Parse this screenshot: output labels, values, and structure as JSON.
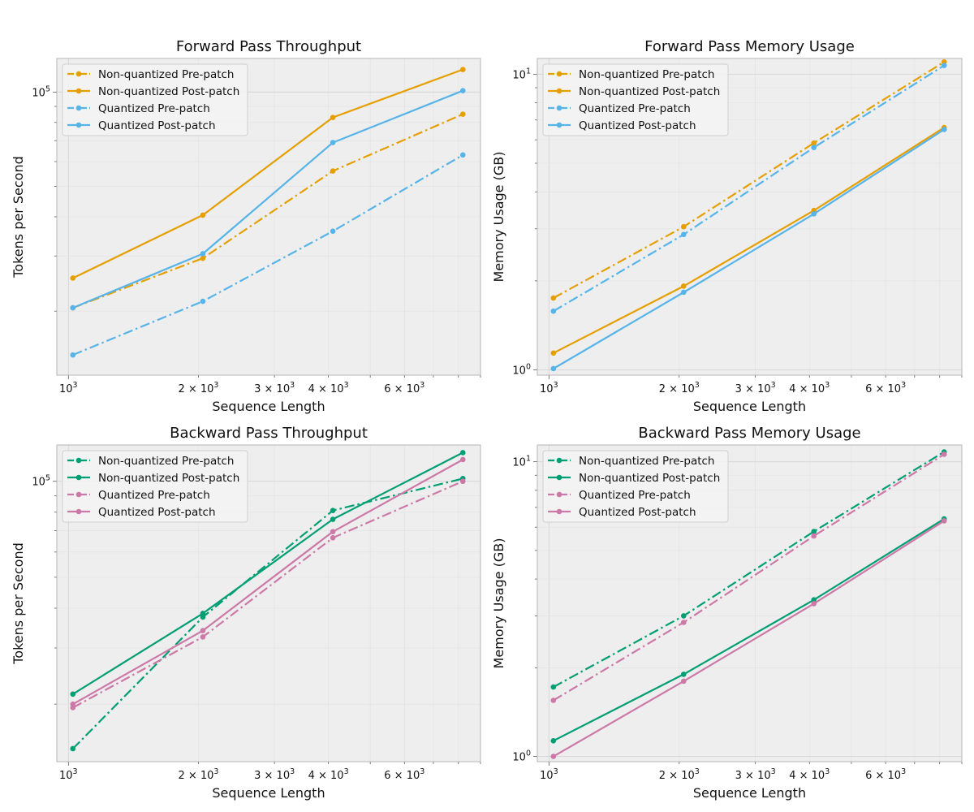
{
  "chart_data": [
    {
      "type": "line",
      "title": "Forward Pass Throughput",
      "xlabel": "Sequence Length",
      "ylabel": "Tokens per Second",
      "xscale": "log",
      "yscale": "log",
      "xlim": [
        940,
        9000
      ],
      "ylim": [
        12500,
        128000
      ],
      "grid": true,
      "legend_position": "top-left",
      "x": [
        1024,
        2048,
        4096,
        8192
      ],
      "xticks": [
        {
          "value": 1000,
          "label": "10",
          "exp": "3"
        },
        {
          "value": 2000,
          "label": "2 × 10",
          "exp": "3"
        },
        {
          "value": 3000,
          "label": "3 × 10",
          "exp": "3"
        },
        {
          "value": 4000,
          "label": "4 × 10",
          "exp": "3"
        },
        {
          "value": 6000,
          "label": "6 × 10",
          "exp": "3"
        }
      ],
      "yticks": [
        {
          "value": 100000,
          "label": "10",
          "exp": "5"
        }
      ],
      "series": [
        {
          "name": "Non-quantized Pre-patch",
          "color": "#E69F00",
          "style": "dashdot",
          "values": [
            20500,
            29500,
            56000,
            85000
          ]
        },
        {
          "name": "Non-quantized Post-patch",
          "color": "#E69F00",
          "style": "solid",
          "values": [
            25500,
            40500,
            83000,
            118000
          ]
        },
        {
          "name": "Quantized Pre-patch",
          "color": "#56B4E9",
          "style": "dashdot",
          "values": [
            14500,
            21500,
            36000,
            63000
          ]
        },
        {
          "name": "Quantized Post-patch",
          "color": "#56B4E9",
          "style": "solid",
          "values": [
            20500,
            30500,
            69000,
            101000
          ]
        }
      ]
    },
    {
      "type": "line",
      "title": "Forward Pass Memory Usage",
      "xlabel": "Sequence Length",
      "ylabel": "Memory Usage (GB)",
      "xscale": "log",
      "yscale": "log",
      "xlim": [
        940,
        9000
      ],
      "ylim": [
        0.96,
        11.3
      ],
      "grid": true,
      "legend_position": "top-left",
      "x": [
        1024,
        2048,
        4096,
        8192
      ],
      "xticks": [
        {
          "value": 1000,
          "label": "10",
          "exp": "3"
        },
        {
          "value": 2000,
          "label": "2 × 10",
          "exp": "3"
        },
        {
          "value": 3000,
          "label": "3 × 10",
          "exp": "3"
        },
        {
          "value": 4000,
          "label": "4 × 10",
          "exp": "3"
        },
        {
          "value": 6000,
          "label": "6 × 10",
          "exp": "3"
        }
      ],
      "yticks": [
        {
          "value": 1,
          "label": "10",
          "exp": "0"
        },
        {
          "value": 10,
          "label": "10",
          "exp": "1"
        }
      ],
      "series": [
        {
          "name": "Non-quantized Pre-patch",
          "color": "#E69F00",
          "style": "dashdot",
          "values": [
            1.75,
            3.05,
            5.85,
            11.0
          ]
        },
        {
          "name": "Non-quantized Post-patch",
          "color": "#E69F00",
          "style": "solid",
          "values": [
            1.14,
            1.92,
            3.46,
            6.6
          ]
        },
        {
          "name": "Quantized Pre-patch",
          "color": "#56B4E9",
          "style": "dashdot",
          "values": [
            1.58,
            2.87,
            5.65,
            10.7
          ]
        },
        {
          "name": "Quantized Post-patch",
          "color": "#56B4E9",
          "style": "solid",
          "values": [
            1.01,
            1.83,
            3.37,
            6.5
          ]
        }
      ]
    },
    {
      "type": "line",
      "title": "Backward Pass Throughput",
      "xlabel": "Sequence Length",
      "ylabel": "Tokens per Second",
      "xscale": "log",
      "yscale": "log",
      "xlim": [
        940,
        9000
      ],
      "ylim": [
        13200,
        130000
      ],
      "grid": true,
      "legend_position": "top-left",
      "x": [
        1024,
        2048,
        4096,
        8192
      ],
      "xticks": [
        {
          "value": 1000,
          "label": "10",
          "exp": "3"
        },
        {
          "value": 2000,
          "label": "2 × 10",
          "exp": "3"
        },
        {
          "value": 3000,
          "label": "3 × 10",
          "exp": "3"
        },
        {
          "value": 4000,
          "label": "4 × 10",
          "exp": "3"
        },
        {
          "value": 6000,
          "label": "6 × 10",
          "exp": "3"
        }
      ],
      "yticks": [
        {
          "value": 100000,
          "label": "10",
          "exp": "5"
        }
      ],
      "series": [
        {
          "name": "Non-quantized Pre-patch",
          "color": "#009E73",
          "style": "dashdot",
          "values": [
            14500,
            37500,
            81000,
            102000
          ]
        },
        {
          "name": "Non-quantized Post-patch",
          "color": "#009E73",
          "style": "solid",
          "values": [
            21500,
            38500,
            76000,
            123000
          ]
        },
        {
          "name": "Quantized Pre-patch",
          "color": "#CC79A7",
          "style": "dashdot",
          "values": [
            19500,
            32500,
            66500,
            100000
          ]
        },
        {
          "name": "Quantized Post-patch",
          "color": "#CC79A7",
          "style": "solid",
          "values": [
            20000,
            34000,
            69500,
            117000
          ]
        }
      ]
    },
    {
      "type": "line",
      "title": "Backward Pass Memory Usage",
      "xlabel": "Sequence Length",
      "ylabel": "Memory Usage (GB)",
      "xscale": "log",
      "yscale": "log",
      "xlim": [
        940,
        9000
      ],
      "ylim": [
        0.96,
        11.4
      ],
      "grid": true,
      "legend_position": "top-left",
      "x": [
        1024,
        2048,
        4096,
        8192
      ],
      "xticks": [
        {
          "value": 1000,
          "label": "10",
          "exp": "3"
        },
        {
          "value": 2000,
          "label": "2 × 10",
          "exp": "3"
        },
        {
          "value": 3000,
          "label": "3 × 10",
          "exp": "3"
        },
        {
          "value": 4000,
          "label": "4 × 10",
          "exp": "3"
        },
        {
          "value": 6000,
          "label": "6 × 10",
          "exp": "3"
        }
      ],
      "yticks": [
        {
          "value": 1,
          "label": "10",
          "exp": "0"
        },
        {
          "value": 10,
          "label": "10",
          "exp": "1"
        }
      ],
      "series": [
        {
          "name": "Non-quantized Pre-patch",
          "color": "#009E73",
          "style": "dashdot",
          "values": [
            1.72,
            3.0,
            5.8,
            10.8
          ]
        },
        {
          "name": "Non-quantized Post-patch",
          "color": "#009E73",
          "style": "solid",
          "values": [
            1.13,
            1.9,
            3.4,
            6.4
          ]
        },
        {
          "name": "Quantized Pre-patch",
          "color": "#CC79A7",
          "style": "dashdot",
          "values": [
            1.55,
            2.85,
            5.6,
            10.6
          ]
        },
        {
          "name": "Quantized Post-patch",
          "color": "#CC79A7",
          "style": "solid",
          "values": [
            1.0,
            1.8,
            3.3,
            6.3
          ]
        }
      ]
    }
  ]
}
